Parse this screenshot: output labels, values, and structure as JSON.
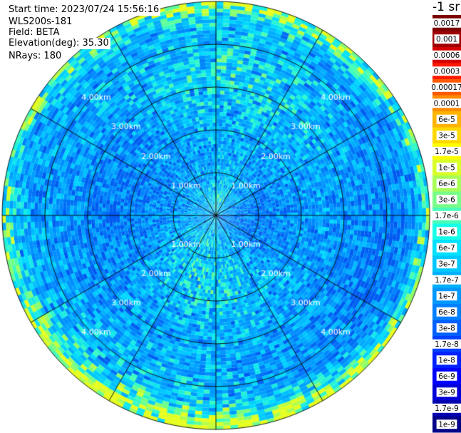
{
  "header": {
    "start_time": "Start time: 2023/07/24 15:56:16",
    "instrument": "WLS200s-181",
    "field": "Field: BETA",
    "elevation": "Elevation(deg): 35.30",
    "nrays": "NRays: 180"
  },
  "colorbar": {
    "unit": "-1 sr",
    "labels": [
      "0.0017",
      "0.001",
      "0.0006",
      "0.0003",
      "0.00017",
      "0.0001",
      "6e-5",
      "3e-5",
      "1.7e-5",
      "1e-5",
      "6e-6",
      "3e-6",
      "1.7e-6",
      "1e-6",
      "6e-7",
      "3e-7",
      "1.7e-7",
      "1e-7",
      "6e-8",
      "3e-8",
      "1.7e-8",
      "1e-8",
      "6e-9",
      "3e-9",
      "1.7e-9",
      "1e-9"
    ],
    "colors": [
      "#7a0000",
      "#a00000",
      "#d40000",
      "#ff1a00",
      "#ff5a00",
      "#ff8c00",
      "#ffb400",
      "#ffd800",
      "#ffff00",
      "#d8ff28",
      "#a8ff58",
      "#78ff88",
      "#48ffb8",
      "#18ffe8",
      "#00e0ff",
      "#00c8ff",
      "#00b0ff",
      "#0098ff",
      "#0080ff",
      "#0060ff",
      "#0040ff",
      "#0020ff",
      "#0000ff",
      "#0000d8",
      "#0000b0",
      "#000088"
    ]
  },
  "chart_data": {
    "type": "heatmap",
    "projection": "polar PPI scan (plan position indicator)",
    "field": "BETA",
    "unit": "-1 sr",
    "elevation_deg": 35.3,
    "n_rays": 180,
    "start_time": "2023/07/24 15:56:16",
    "range_rings_km": [
      1.0,
      2.0,
      3.0,
      4.0,
      5.0
    ],
    "ring_labels": [
      "1.00km",
      "2.00km",
      "3.00km",
      "4.00km"
    ],
    "spoke_interval_deg": 30,
    "grid": true,
    "colorscale": "jet, logarithmic from 1e-9 to 0.0017",
    "dominant_values": {
      "inner_region": "1e-7",
      "mid_region": "1.7e-7",
      "outer_edge": "1e-6"
    }
  }
}
